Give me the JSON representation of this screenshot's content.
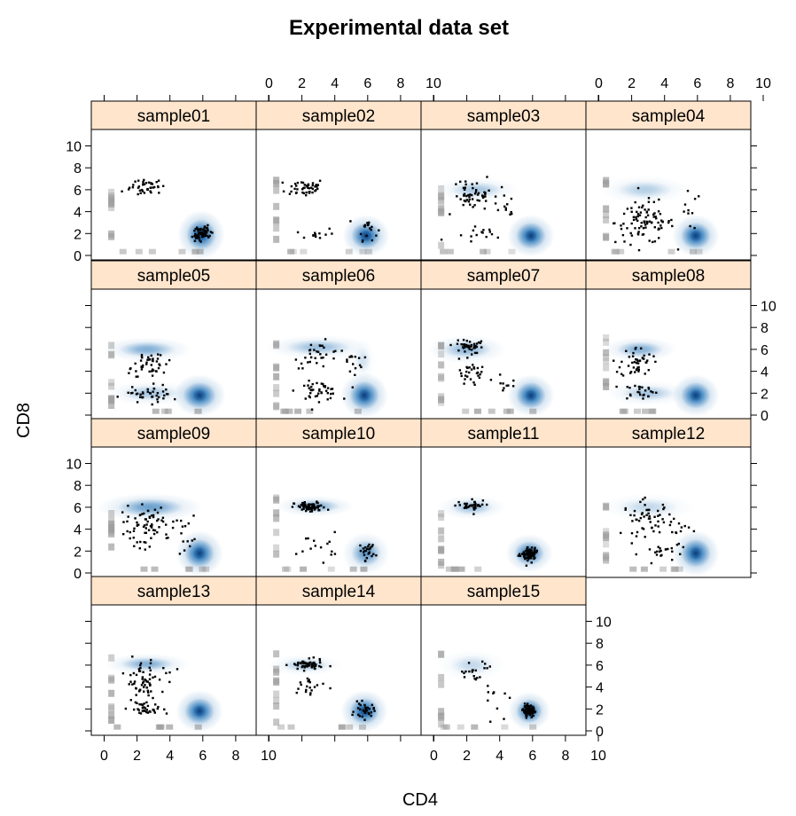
{
  "chart_data": {
    "type": "scatter",
    "title": "Experimental data set",
    "xlabel": "CD4",
    "ylabel": "CD8",
    "xlim": [
      0,
      10
    ],
    "ylim": [
      0,
      10
    ],
    "x_ticks": [
      "0",
      "2",
      "4",
      "6",
      "8",
      "10"
    ],
    "y_ticks": [
      "0",
      "2",
      "4",
      "6",
      "8",
      "10"
    ],
    "layout": {
      "columns": 4,
      "rows": 4
    },
    "colors": {
      "strip": "#ffe5cc",
      "density": "#2171b5",
      "point": "#000000",
      "rug": "#9e9e9e"
    },
    "panels": [
      {
        "name": "sample01",
        "clusters": [
          {
            "x": 2.5,
            "y": 6.3,
            "sx": 0.9,
            "sy": 0.6,
            "n": 40
          },
          {
            "x": 5.9,
            "y": 2.0,
            "sx": 0.45,
            "sy": 0.6,
            "n": 60
          }
        ],
        "dense": [
          {
            "x": 5.9,
            "y": 1.9,
            "rx": 0.9,
            "ry": 1.4,
            "d": 0.95
          }
        ]
      },
      {
        "name": "sample02",
        "clusters": [
          {
            "x": 2.2,
            "y": 6.2,
            "sx": 1.0,
            "sy": 0.7,
            "n": 45
          },
          {
            "x": 2.8,
            "y": 2.0,
            "sx": 1.0,
            "sy": 0.5,
            "n": 12
          },
          {
            "x": 6.0,
            "y": 2.5,
            "sx": 0.5,
            "sy": 0.9,
            "n": 18
          }
        ],
        "dense": [
          {
            "x": 5.9,
            "y": 1.8,
            "rx": 0.9,
            "ry": 1.2,
            "d": 0.95
          }
        ]
      },
      {
        "name": "sample03",
        "clusters": [
          {
            "x": 2.5,
            "y": 5.5,
            "sx": 1.2,
            "sy": 1.0,
            "n": 55
          },
          {
            "x": 2.5,
            "y": 2.0,
            "sx": 1.0,
            "sy": 0.6,
            "n": 15
          },
          {
            "x": 4.5,
            "y": 4.5,
            "sx": 0.8,
            "sy": 1.2,
            "n": 10
          }
        ],
        "dense": [
          {
            "x": 2.6,
            "y": 6.0,
            "rx": 1.6,
            "ry": 0.7,
            "d": 0.3
          },
          {
            "x": 5.9,
            "y": 1.8,
            "rx": 0.9,
            "ry": 1.2,
            "d": 0.95
          }
        ]
      },
      {
        "name": "sample04",
        "clusters": [
          {
            "x": 2.8,
            "y": 3.0,
            "sx": 1.5,
            "sy": 1.6,
            "n": 90
          },
          {
            "x": 5.5,
            "y": 4.0,
            "sx": 0.6,
            "sy": 1.5,
            "n": 10
          }
        ],
        "dense": [
          {
            "x": 2.8,
            "y": 6.0,
            "rx": 1.7,
            "ry": 0.8,
            "d": 0.25
          },
          {
            "x": 5.9,
            "y": 1.8,
            "rx": 0.9,
            "ry": 1.2,
            "d": 0.95
          }
        ]
      },
      {
        "name": "sample05",
        "clusters": [
          {
            "x": 2.5,
            "y": 4.5,
            "sx": 1.0,
            "sy": 1.1,
            "n": 45
          },
          {
            "x": 2.8,
            "y": 2.0,
            "sx": 1.3,
            "sy": 0.6,
            "n": 40
          }
        ],
        "dense": [
          {
            "x": 2.6,
            "y": 6.0,
            "rx": 1.7,
            "ry": 0.7,
            "d": 0.45
          },
          {
            "x": 2.8,
            "y": 2.0,
            "rx": 1.7,
            "ry": 0.7,
            "d": 0.3
          },
          {
            "x": 5.8,
            "y": 1.8,
            "rx": 1.0,
            "ry": 1.2,
            "d": 0.95
          }
        ]
      },
      {
        "name": "sample06",
        "clusters": [
          {
            "x": 3.0,
            "y": 5.5,
            "sx": 1.2,
            "sy": 1.0,
            "n": 30
          },
          {
            "x": 3.0,
            "y": 2.2,
            "sx": 1.1,
            "sy": 0.7,
            "n": 40
          },
          {
            "x": 5.0,
            "y": 5.0,
            "sx": 0.6,
            "sy": 1.0,
            "n": 15
          }
        ],
        "dense": [
          {
            "x": 3.0,
            "y": 6.2,
            "rx": 2.0,
            "ry": 0.7,
            "d": 0.35
          },
          {
            "x": 5.7,
            "y": 5.0,
            "rx": 0.5,
            "ry": 1.2,
            "d": 0.15
          },
          {
            "x": 5.8,
            "y": 1.8,
            "rx": 0.9,
            "ry": 1.3,
            "d": 0.95
          }
        ]
      },
      {
        "name": "sample07",
        "clusters": [
          {
            "x": 2.0,
            "y": 6.3,
            "sx": 0.9,
            "sy": 0.5,
            "n": 45
          },
          {
            "x": 2.3,
            "y": 4.0,
            "sx": 0.8,
            "sy": 1.2,
            "n": 30
          },
          {
            "x": 4.5,
            "y": 3.0,
            "sx": 0.6,
            "sy": 1.0,
            "n": 10
          }
        ],
        "dense": [
          {
            "x": 2.0,
            "y": 6.0,
            "rx": 1.5,
            "ry": 0.8,
            "d": 0.4
          },
          {
            "x": 5.9,
            "y": 1.8,
            "rx": 0.9,
            "ry": 1.2,
            "d": 0.95
          }
        ]
      },
      {
        "name": "sample08",
        "clusters": [
          {
            "x": 2.3,
            "y": 4.8,
            "sx": 0.8,
            "sy": 1.2,
            "n": 45
          },
          {
            "x": 2.5,
            "y": 2.2,
            "sx": 0.9,
            "sy": 0.6,
            "n": 25
          }
        ],
        "dense": [
          {
            "x": 2.5,
            "y": 6.0,
            "rx": 1.4,
            "ry": 0.7,
            "d": 0.45
          },
          {
            "x": 3.0,
            "y": 2.0,
            "rx": 1.6,
            "ry": 0.7,
            "d": 0.3
          },
          {
            "x": 5.9,
            "y": 1.8,
            "rx": 0.9,
            "ry": 1.2,
            "d": 0.95
          }
        ]
      },
      {
        "name": "sample09",
        "clusters": [
          {
            "x": 2.5,
            "y": 4.0,
            "sx": 1.2,
            "sy": 1.6,
            "n": 70
          },
          {
            "x": 5.0,
            "y": 3.5,
            "sx": 0.6,
            "sy": 1.5,
            "n": 15
          }
        ],
        "dense": [
          {
            "x": 2.8,
            "y": 6.0,
            "rx": 2.0,
            "ry": 0.8,
            "d": 0.55
          },
          {
            "x": 5.8,
            "y": 1.8,
            "rx": 0.9,
            "ry": 1.3,
            "d": 0.95
          }
        ]
      },
      {
        "name": "sample10",
        "clusters": [
          {
            "x": 2.5,
            "y": 6.0,
            "sx": 0.8,
            "sy": 0.4,
            "n": 70
          },
          {
            "x": 3.0,
            "y": 2.5,
            "sx": 1.0,
            "sy": 1.0,
            "n": 15
          },
          {
            "x": 6.0,
            "y": 2.0,
            "sx": 0.4,
            "sy": 0.7,
            "n": 25
          }
        ],
        "dense": [
          {
            "x": 2.8,
            "y": 6.1,
            "rx": 1.5,
            "ry": 0.6,
            "d": 0.45
          },
          {
            "x": 5.9,
            "y": 1.8,
            "rx": 0.9,
            "ry": 1.2,
            "d": 0.6
          }
        ]
      },
      {
        "name": "sample11",
        "clusters": [
          {
            "x": 2.3,
            "y": 6.1,
            "sx": 0.7,
            "sy": 0.4,
            "n": 40
          },
          {
            "x": 5.8,
            "y": 1.8,
            "sx": 0.35,
            "sy": 0.5,
            "n": 80
          }
        ],
        "dense": [
          {
            "x": 2.3,
            "y": 6.0,
            "rx": 1.3,
            "ry": 0.7,
            "d": 0.35
          },
          {
            "x": 5.8,
            "y": 1.8,
            "rx": 0.9,
            "ry": 1.1,
            "d": 0.8
          }
        ]
      },
      {
        "name": "sample12",
        "clusters": [
          {
            "x": 3.0,
            "y": 5.0,
            "sx": 1.3,
            "sy": 1.3,
            "n": 55
          },
          {
            "x": 4.0,
            "y": 1.8,
            "sx": 1.2,
            "sy": 0.7,
            "n": 20
          },
          {
            "x": 4.8,
            "y": 4.0,
            "sx": 0.6,
            "sy": 1.0,
            "n": 10
          }
        ],
        "dense": [
          {
            "x": 3.0,
            "y": 6.0,
            "rx": 1.8,
            "ry": 0.8,
            "d": 0.2
          },
          {
            "x": 5.9,
            "y": 1.8,
            "rx": 0.9,
            "ry": 1.3,
            "d": 0.95
          }
        ]
      },
      {
        "name": "sample13",
        "clusters": [
          {
            "x": 2.3,
            "y": 4.5,
            "sx": 0.8,
            "sy": 1.4,
            "n": 55
          },
          {
            "x": 2.5,
            "y": 2.0,
            "sx": 0.8,
            "sy": 0.6,
            "n": 35
          },
          {
            "x": 4.0,
            "y": 5.5,
            "sx": 0.6,
            "sy": 0.7,
            "n": 6
          }
        ],
        "dense": [
          {
            "x": 2.6,
            "y": 6.1,
            "rx": 1.6,
            "ry": 0.6,
            "d": 0.45
          },
          {
            "x": 5.8,
            "y": 1.8,
            "rx": 0.9,
            "ry": 1.2,
            "d": 0.95
          }
        ]
      },
      {
        "name": "sample14",
        "clusters": [
          {
            "x": 2.3,
            "y": 6.0,
            "sx": 0.8,
            "sy": 0.4,
            "n": 55
          },
          {
            "x": 2.5,
            "y": 4.0,
            "sx": 0.9,
            "sy": 1.0,
            "n": 20
          },
          {
            "x": 5.8,
            "y": 1.8,
            "sx": 0.5,
            "sy": 0.6,
            "n": 30
          }
        ],
        "dense": [
          {
            "x": 2.2,
            "y": 6.0,
            "rx": 1.4,
            "ry": 0.6,
            "d": 0.3
          },
          {
            "x": 5.8,
            "y": 1.8,
            "rx": 0.9,
            "ry": 1.2,
            "d": 0.95
          }
        ]
      },
      {
        "name": "sample15",
        "clusters": [
          {
            "x": 2.5,
            "y": 5.5,
            "sx": 0.9,
            "sy": 1.0,
            "n": 20
          },
          {
            "x": 4.0,
            "y": 3.0,
            "sx": 0.8,
            "sy": 1.2,
            "n": 10
          },
          {
            "x": 5.8,
            "y": 1.8,
            "sx": 0.3,
            "sy": 0.4,
            "n": 100
          }
        ],
        "dense": [
          {
            "x": 2.3,
            "y": 6.0,
            "rx": 1.3,
            "ry": 0.9,
            "d": 0.2
          },
          {
            "x": 5.8,
            "y": 1.8,
            "rx": 0.8,
            "ry": 1.1,
            "d": 0.9
          }
        ]
      }
    ]
  }
}
